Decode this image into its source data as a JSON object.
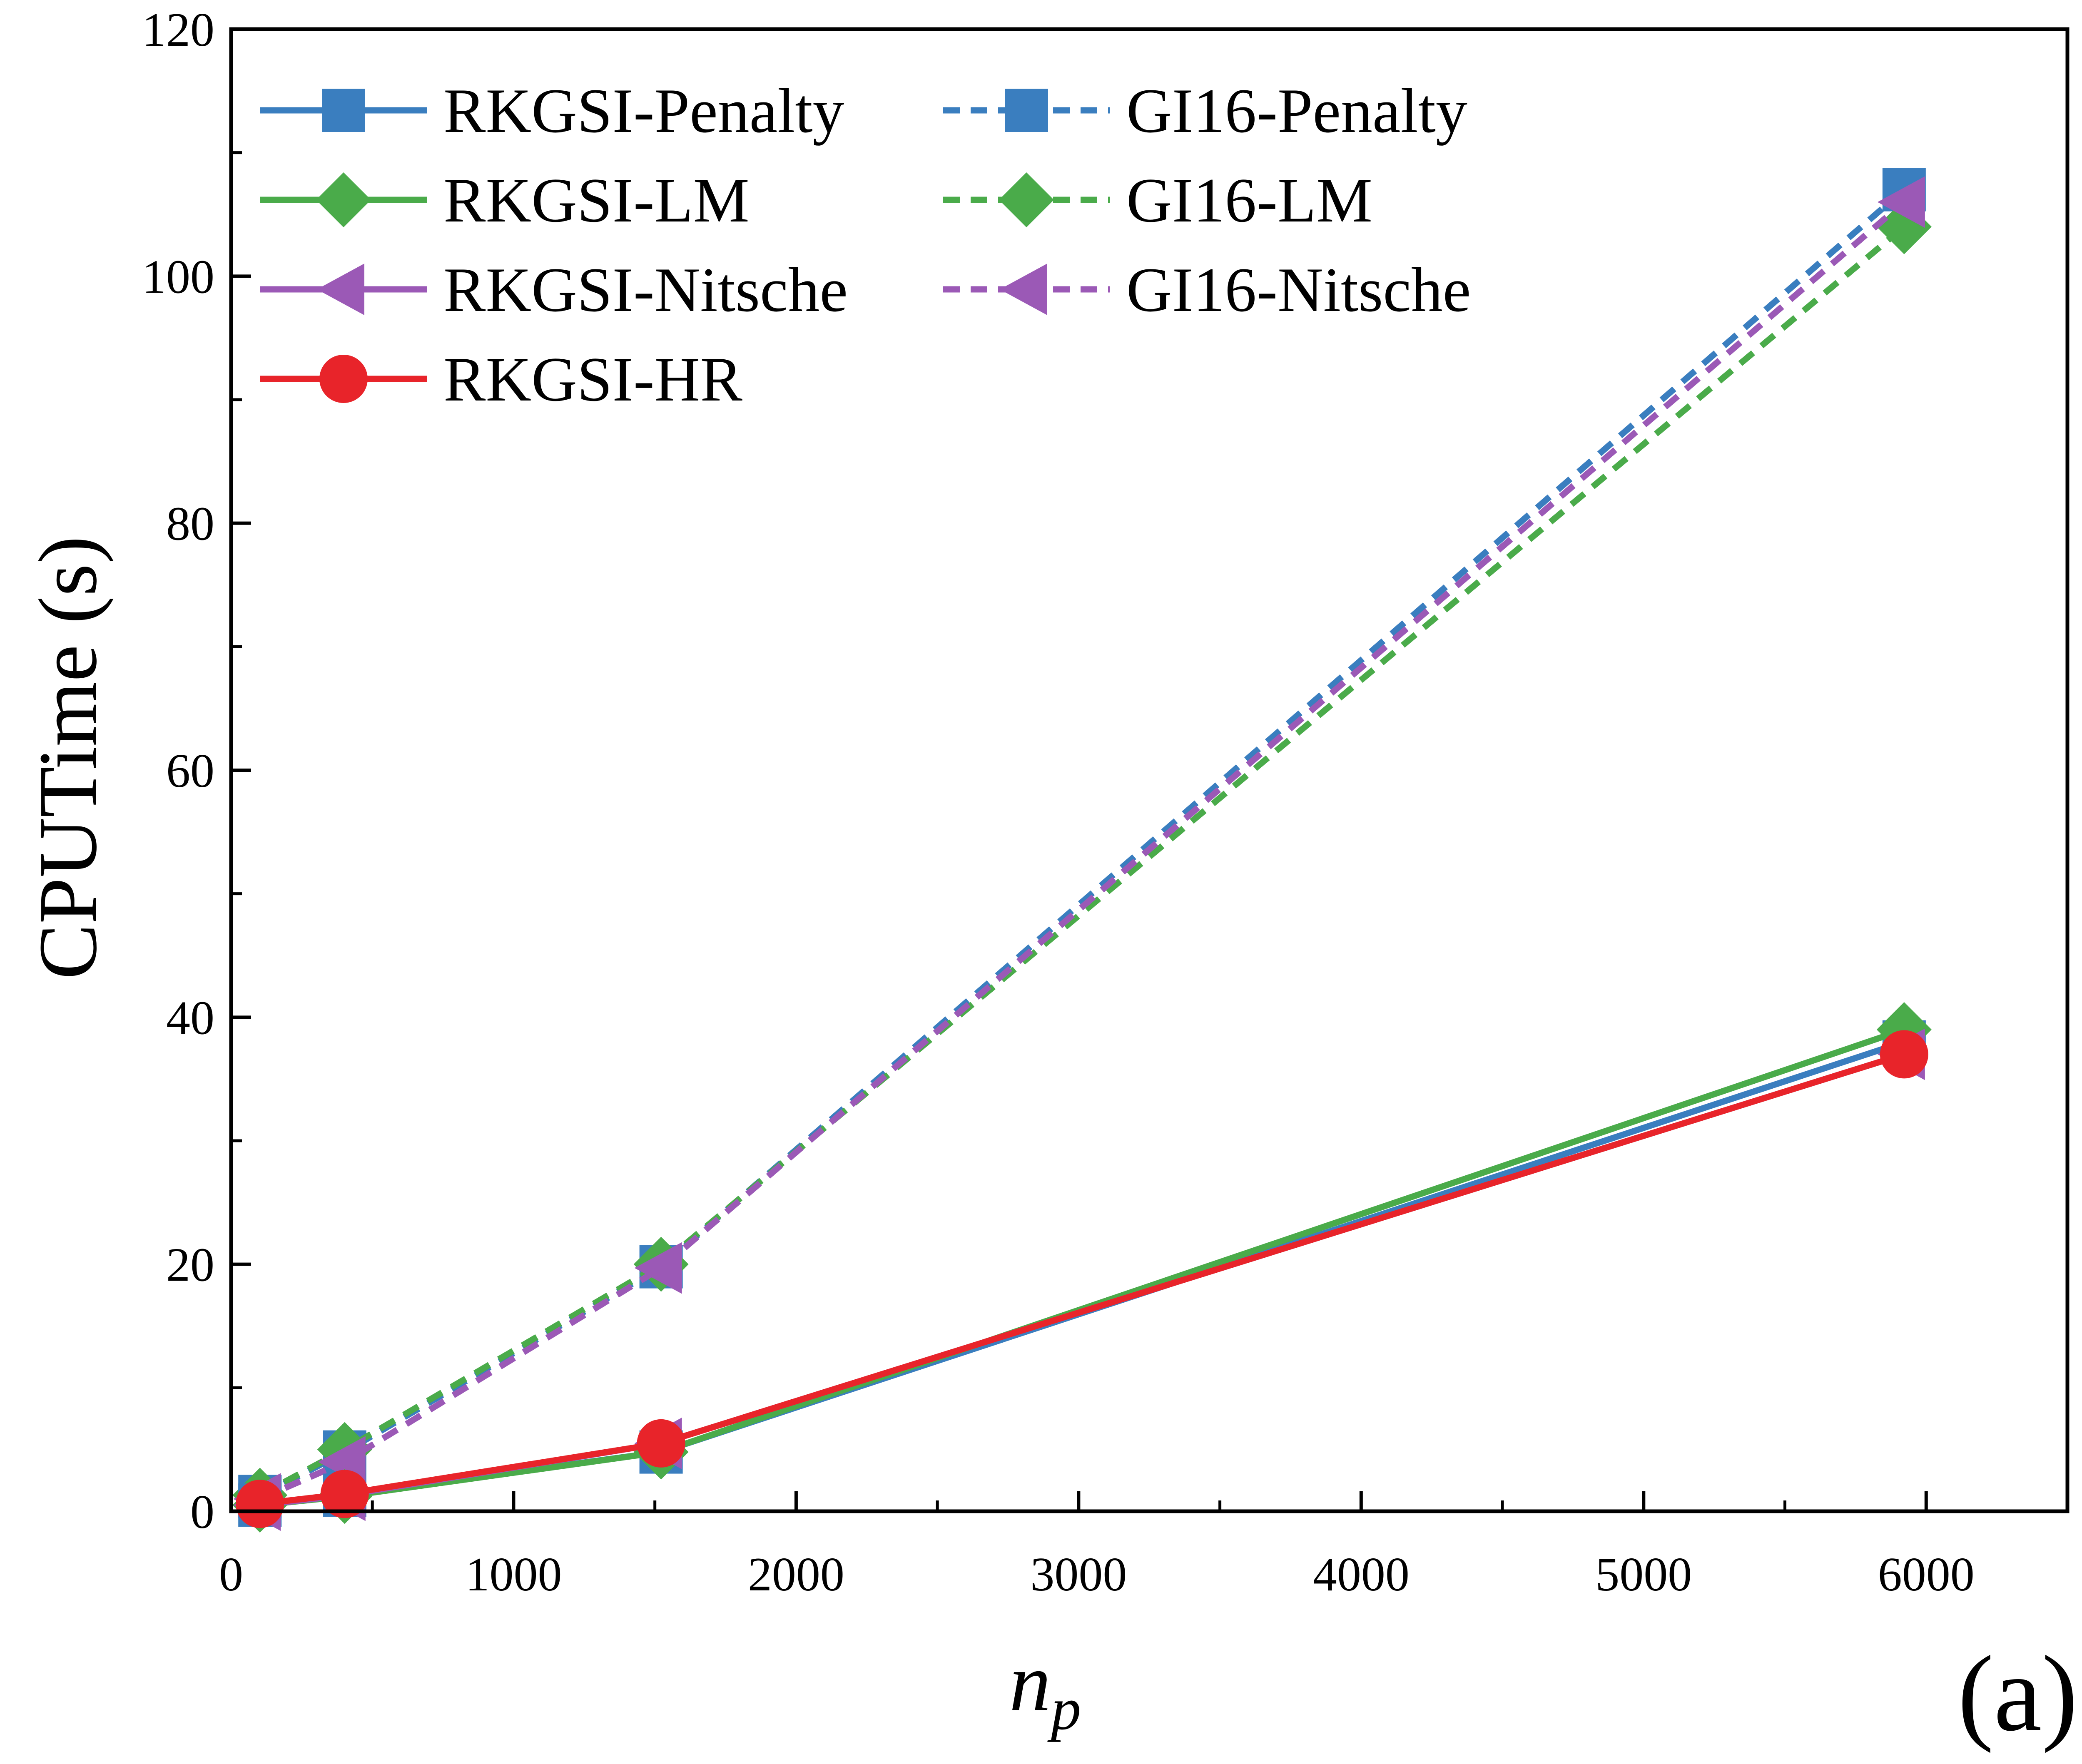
{
  "chart_data": {
    "type": "line",
    "panel_label": "(a)",
    "xlabel": "n",
    "xlabel_subscript": "p",
    "ylabel": "CPUTime (s)",
    "xlim": [
      0,
      6500
    ],
    "ylim": [
      0,
      120
    ],
    "xticks": [
      0,
      1000,
      2000,
      3000,
      4000,
      5000,
      6000
    ],
    "yticks": [
      0,
      20,
      40,
      60,
      80,
      100,
      120
    ],
    "grid": false,
    "legend_position": "top-left",
    "series": [
      {
        "name": "RKGSI-Penalty",
        "color": "#3a7ebf",
        "marker": "square",
        "dash": "solid",
        "x": [
          102,
          402,
          1522,
          5922
        ],
        "y": [
          0.5,
          1.3,
          4.8,
          38.0
        ]
      },
      {
        "name": "GI16-Penalty",
        "color": "#3a7ebf",
        "marker": "square",
        "dash": "dashed",
        "x": [
          102,
          402,
          1522,
          5922
        ],
        "y": [
          1.2,
          4.8,
          19.8,
          107.0
        ]
      },
      {
        "name": "RKGSI-LM",
        "color": "#4aab4a",
        "marker": "diamond",
        "dash": "solid",
        "x": [
          102,
          402,
          1522,
          5922
        ],
        "y": [
          0.5,
          1.2,
          4.8,
          39.0
        ]
      },
      {
        "name": "GI16-LM",
        "color": "#4aab4a",
        "marker": "diamond",
        "dash": "dashed",
        "x": [
          102,
          402,
          1522,
          5922
        ],
        "y": [
          1.3,
          5.0,
          20.0,
          104.0
        ]
      },
      {
        "name": "RKGSI-Nitsche",
        "color": "#9b59b6",
        "marker": "triangle-left",
        "dash": "solid",
        "x": [
          102,
          402,
          1522,
          5922
        ],
        "y": [
          0.5,
          1.3,
          5.5,
          37.0
        ]
      },
      {
        "name": "GI16-Nitsche",
        "color": "#9b59b6",
        "marker": "triangle-left",
        "dash": "dashed",
        "x": [
          102,
          402,
          1522,
          5922
        ],
        "y": [
          1.0,
          4.0,
          19.7,
          106.0
        ]
      },
      {
        "name": "RKGSI-HR",
        "color": "#e8242a",
        "marker": "circle",
        "dash": "solid",
        "x": [
          102,
          402,
          1522,
          5922
        ],
        "y": [
          0.6,
          1.4,
          5.5,
          37.0
        ]
      }
    ],
    "legend_order": [
      "RKGSI-Penalty",
      "GI16-Penalty",
      "RKGSI-LM",
      "GI16-LM",
      "RKGSI-Nitsche",
      "GI16-Nitsche",
      "RKGSI-HR"
    ]
  }
}
